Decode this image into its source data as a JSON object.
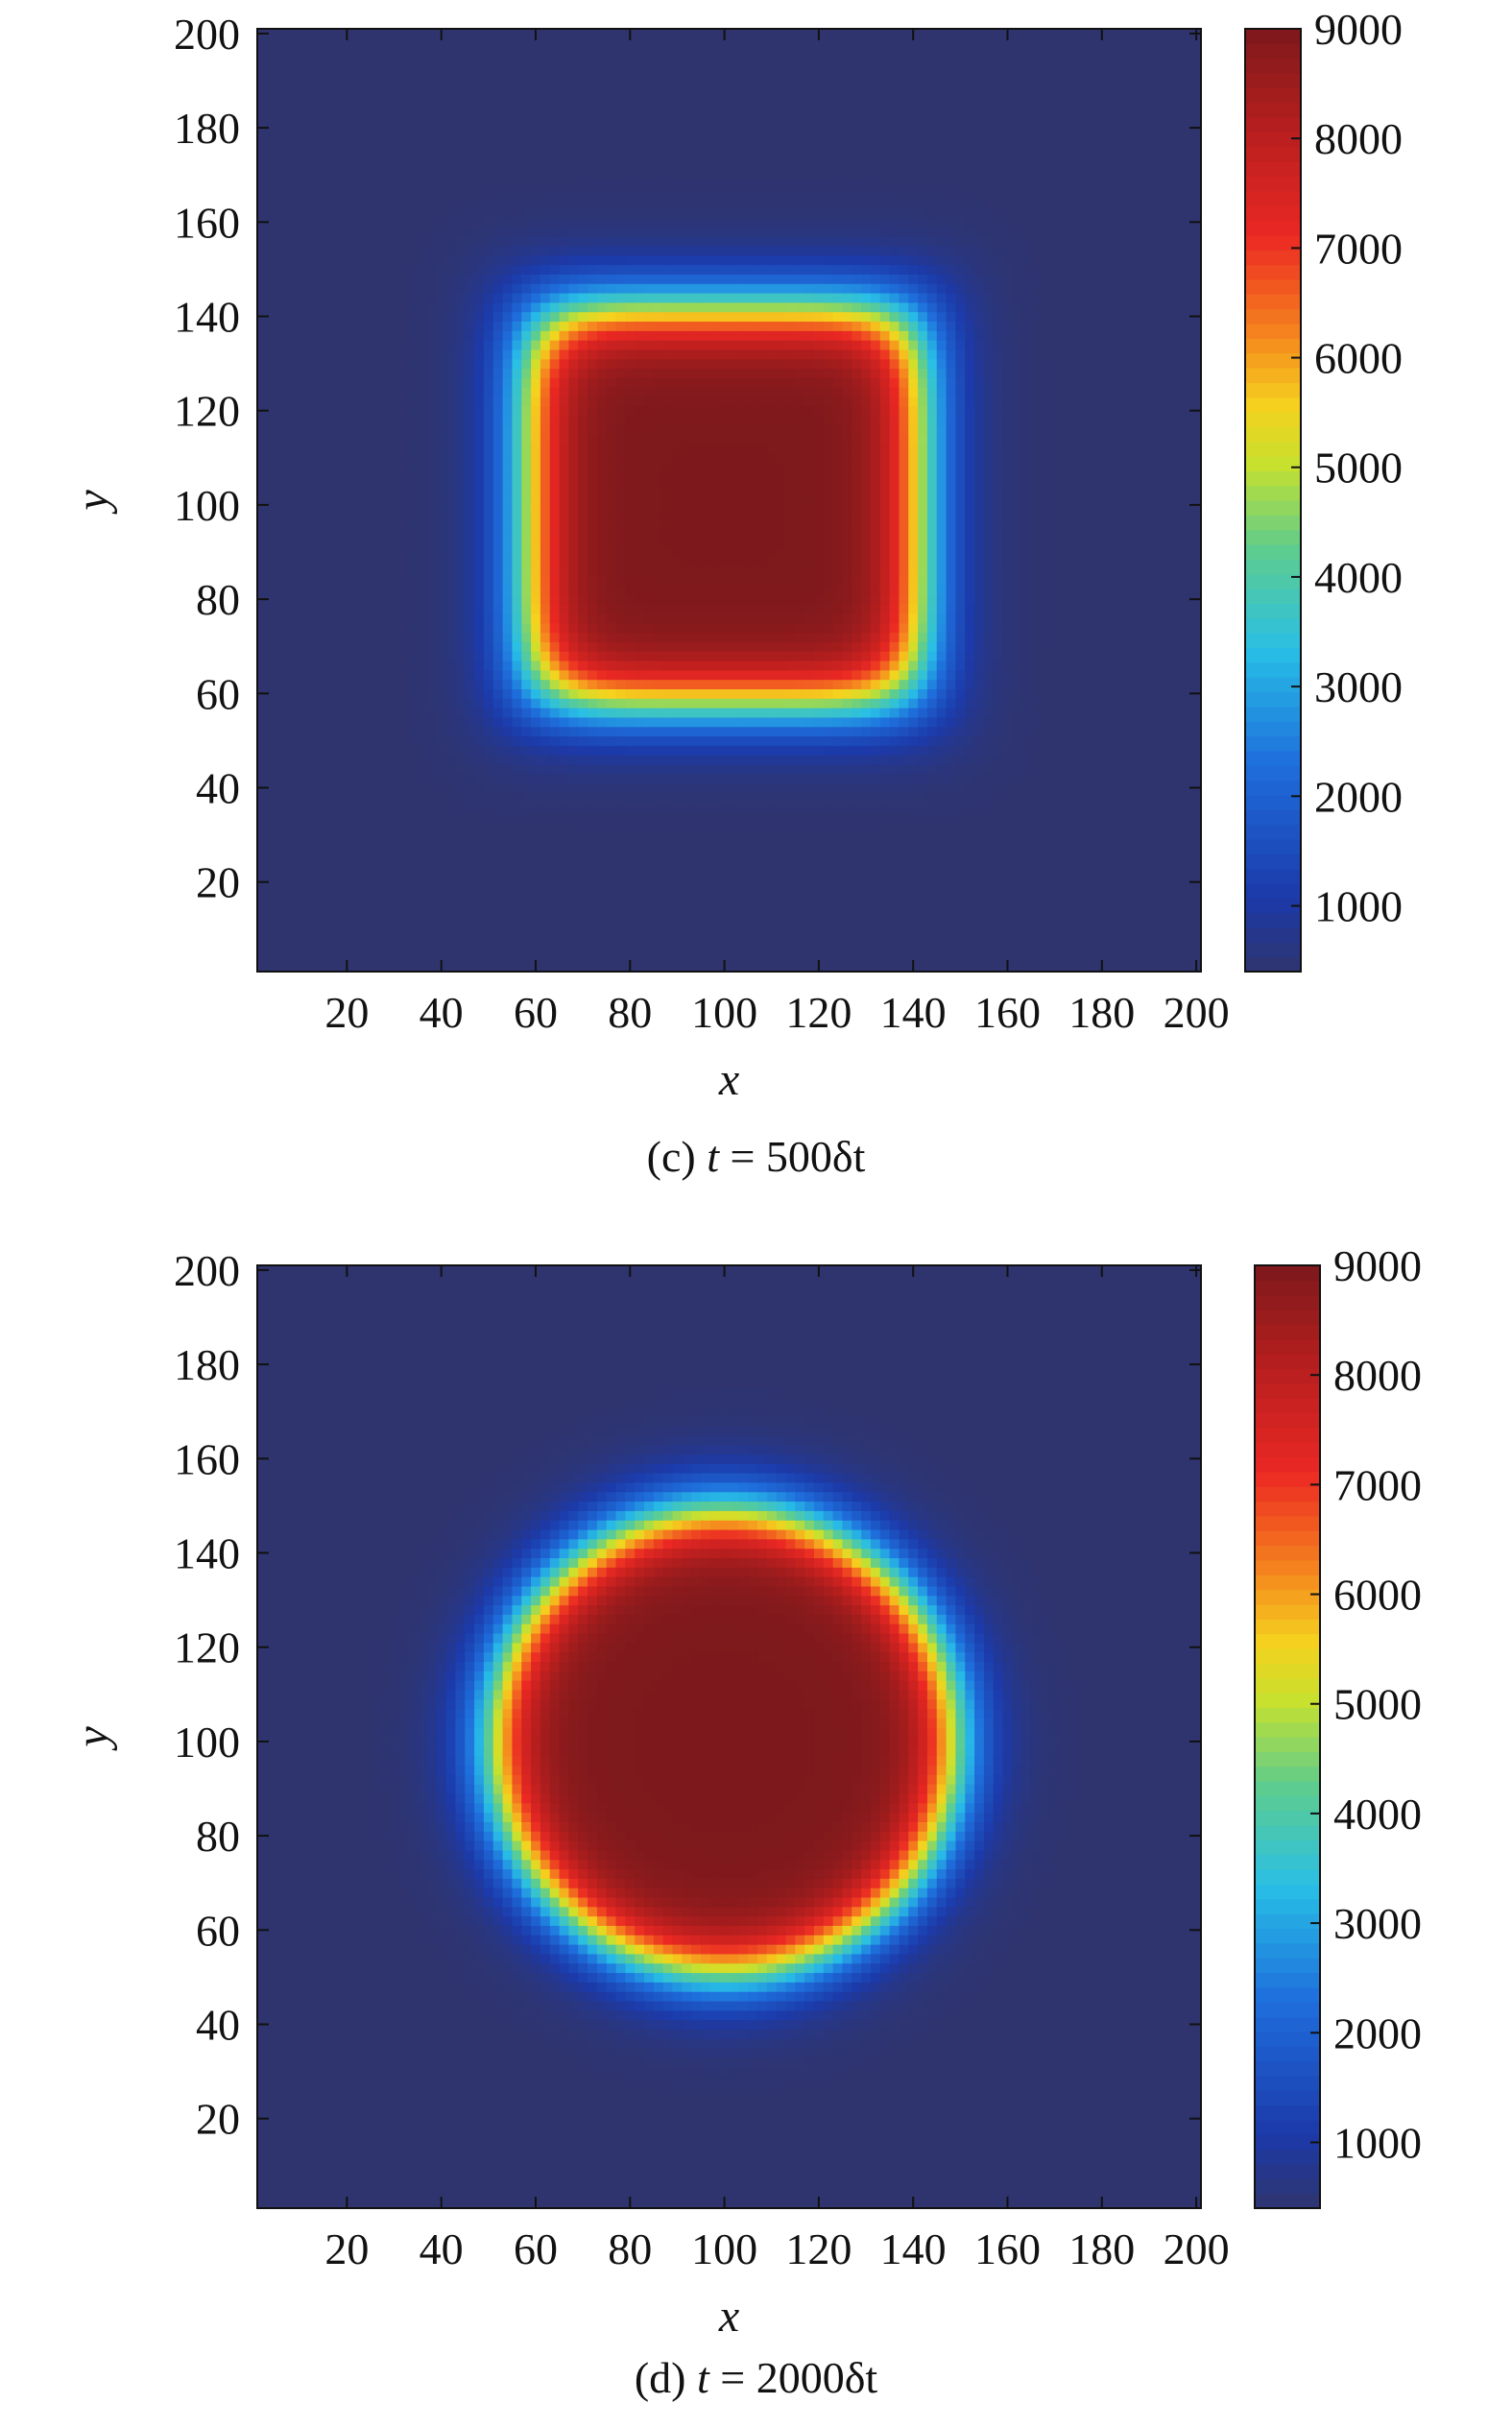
{
  "chart_data": [
    {
      "type": "heatmap",
      "panel": "c",
      "caption": {
        "prefix": "(c) ",
        "var": "t",
        "rest": " = 500δt"
      },
      "xlabel": "x",
      "ylabel": "y",
      "xlim": [
        1,
        201
      ],
      "ylim": [
        1,
        201
      ],
      "xticks": [
        20,
        40,
        60,
        80,
        100,
        120,
        140,
        160,
        180,
        200
      ],
      "yticks": [
        20,
        40,
        60,
        80,
        100,
        120,
        140,
        160,
        180,
        200
      ],
      "colorbar": {
        "range": [
          400,
          9000
        ],
        "ticks": [
          1000,
          2000,
          3000,
          4000,
          5000,
          6000,
          7000,
          8000,
          9000
        ],
        "colormap": "jet"
      },
      "field": {
        "shape": "rounded-square",
        "center": [
          100,
          100
        ],
        "half_width": 42,
        "plateau": 9000,
        "background": 400
      }
    },
    {
      "type": "heatmap",
      "panel": "d",
      "caption": {
        "prefix": "(d) ",
        "var": "t",
        "rest": " = 2000δt"
      },
      "xlabel": "x",
      "ylabel": "y",
      "xlim": [
        1,
        201
      ],
      "ylim": [
        1,
        201
      ],
      "xticks": [
        20,
        40,
        60,
        80,
        100,
        120,
        140,
        160,
        180,
        200
      ],
      "yticks": [
        20,
        40,
        60,
        80,
        100,
        120,
        140,
        160,
        180,
        200
      ],
      "colorbar": {
        "range": [
          400,
          9000
        ],
        "ticks": [
          1000,
          2000,
          3000,
          4000,
          5000,
          6000,
          7000,
          8000,
          9000
        ],
        "colormap": "jet"
      },
      "field": {
        "shape": "circle",
        "center": [
          100,
          100
        ],
        "radius": 49,
        "plateau": 9000,
        "background": 400
      }
    }
  ]
}
